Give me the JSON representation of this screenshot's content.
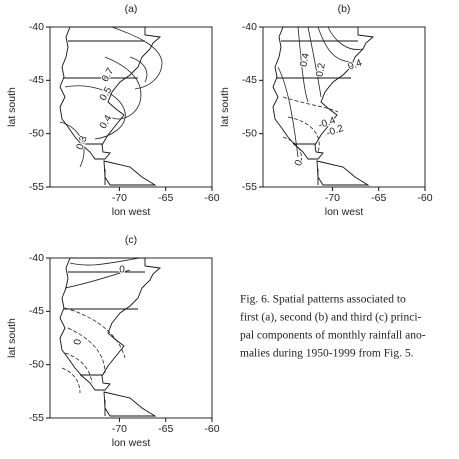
{
  "figure": {
    "panels": [
      {
        "label": "(a)",
        "x_label": "lon west",
        "y_label": "lat south",
        "xlim": [
          -77.5,
          -60
        ],
        "ylim": [
          -55,
          -40
        ],
        "xticks": [
          -70,
          -65,
          -60
        ],
        "yticks": [
          -40,
          -45,
          -50,
          -55
        ],
        "contour_labels": [
          "0.7",
          "0.5",
          "0.4",
          "0.3"
        ]
      },
      {
        "label": "(b)",
        "x_label": "lon west",
        "y_label": "lat south",
        "xlim": [
          -77.5,
          -60
        ],
        "ylim": [
          -55,
          -40
        ],
        "xticks": [
          -70,
          -65,
          -60
        ],
        "yticks": [
          -40,
          -45,
          -50,
          -55
        ],
        "contour_labels": [
          "0.4",
          "0.2",
          "0.4",
          "-0.4",
          "-0.2",
          "0"
        ]
      },
      {
        "label": "(c)",
        "x_label": "lon west",
        "y_label": "lat south",
        "xlim": [
          -77.5,
          -60
        ],
        "ylim": [
          -55,
          -40
        ],
        "xticks": [
          -70,
          -65,
          -60
        ],
        "yticks": [
          -40,
          -45,
          -50,
          -55
        ],
        "contour_labels": [
          "0",
          "0"
        ]
      }
    ],
    "caption": [
      "Fig. 6. Spatial patterns associated to",
      "first (a), second (b) and third (c) princi-",
      "pal components of monthly rainfall ano-",
      "malies during 1950-1999 from Fig. 5."
    ]
  }
}
